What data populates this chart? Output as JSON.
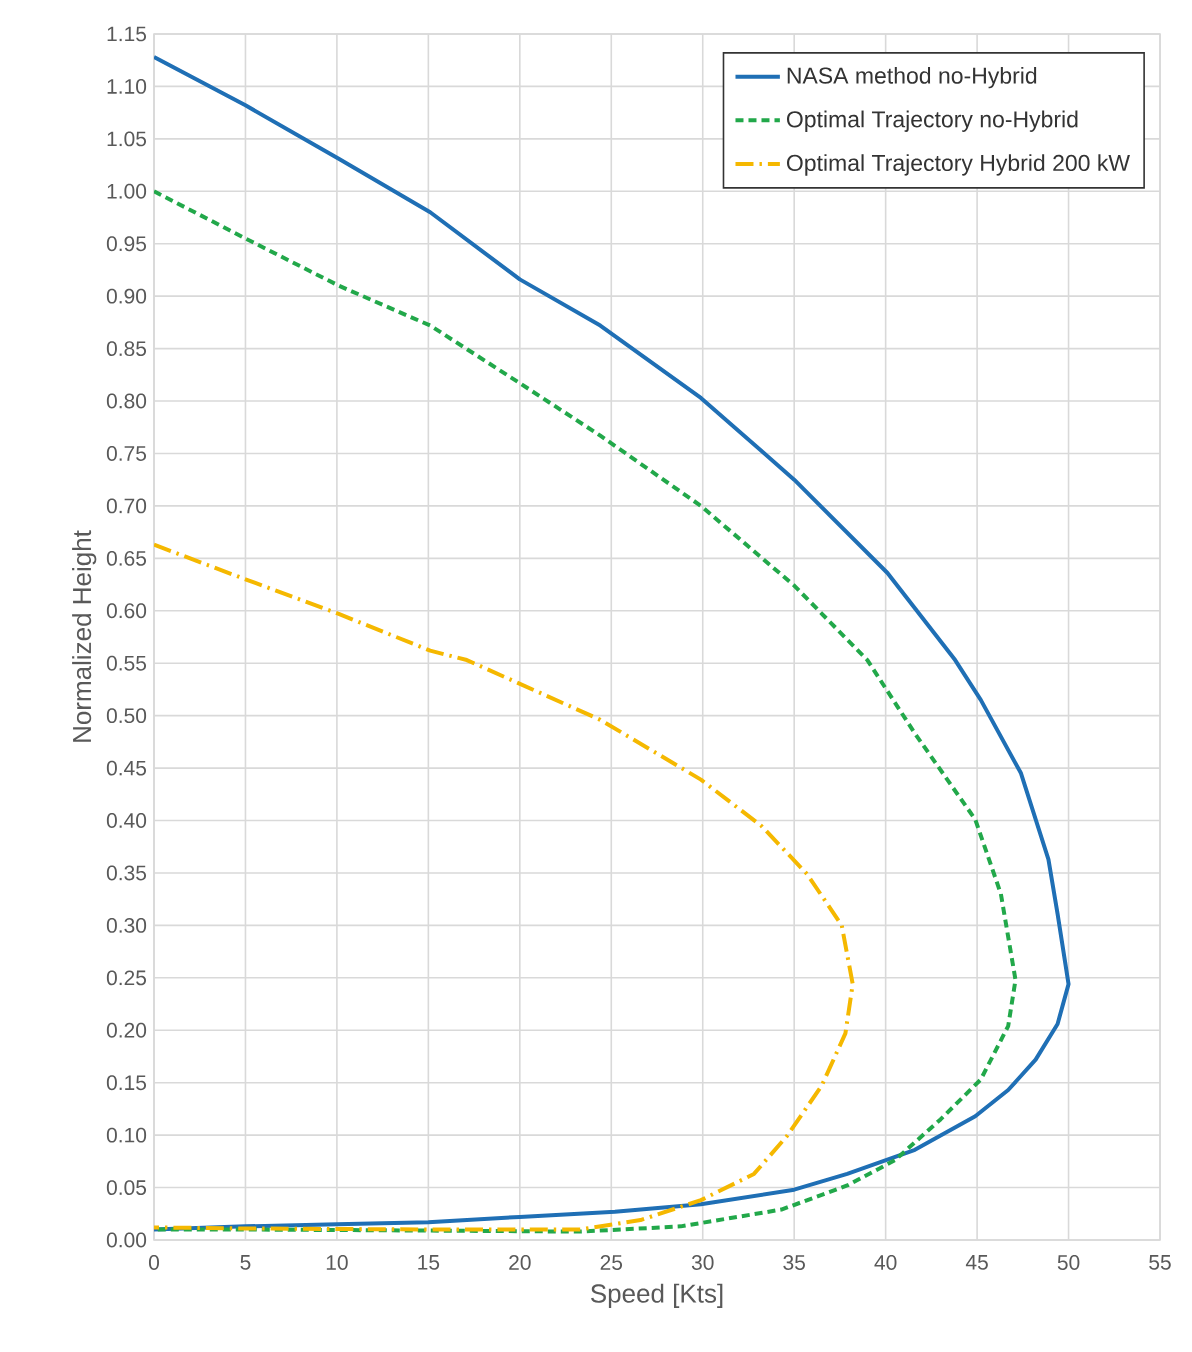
{
  "chart_data": {
    "type": "line",
    "xlabel": "Speed [Kts]",
    "ylabel": "Normalized Height",
    "xlim": [
      0,
      55
    ],
    "xticks": [
      0,
      5,
      10,
      15,
      20,
      25,
      30,
      35,
      40,
      45,
      50,
      55
    ],
    "ylim": [
      0,
      1.15
    ],
    "yticks": [
      {
        "value": 0,
        "label": "0.00"
      },
      {
        "value": 0.05,
        "label": "0.05"
      },
      {
        "value": 0.1,
        "label": "0.10"
      },
      {
        "value": 0.15,
        "label": "0.15"
      },
      {
        "value": 0.2,
        "label": "0.20"
      },
      {
        "value": 0.25,
        "label": "0.25"
      },
      {
        "value": 0.3,
        "label": "0.30"
      },
      {
        "value": 0.35,
        "label": "0.35"
      },
      {
        "value": 0.4,
        "label": "0.40"
      },
      {
        "value": 0.45,
        "label": "0.45"
      },
      {
        "value": 0.5,
        "label": "0.50"
      },
      {
        "value": 0.55,
        "label": "0.55"
      },
      {
        "value": 0.6,
        "label": "0.60"
      },
      {
        "value": 0.65,
        "label": "0.65"
      },
      {
        "value": 0.7,
        "label": "0.70"
      },
      {
        "value": 0.75,
        "label": "0.75"
      },
      {
        "value": 0.8,
        "label": "0.80"
      },
      {
        "value": 0.85,
        "label": "0.85"
      },
      {
        "value": 0.9,
        "label": "0.90"
      },
      {
        "value": 0.95,
        "label": "0.95"
      },
      {
        "value": 1.0,
        "label": "1.00"
      },
      {
        "value": 1.05,
        "label": "1.05"
      },
      {
        "value": 1.1,
        "label": "1.10"
      },
      {
        "value": 1.15,
        "label": "1.15"
      }
    ],
    "grid": true,
    "legend": "top right",
    "marker": "none",
    "series": [
      {
        "name": "NASA method no-Hybrid",
        "color": "#1f6fb5",
        "line_style": "solid",
        "x": [
          0,
          5.0,
          10.1,
          15.1,
          20.0,
          24.4,
          29.9,
          35.0,
          40.1,
          43.8,
          45.2,
          47.4,
          48.9,
          49.4,
          50.0,
          49.4,
          48.2,
          46.7,
          44.9,
          41.6,
          37.9,
          35.0,
          29.9,
          25.2,
          20,
          15,
          10,
          5,
          0
        ],
        "values": [
          1.128,
          1.082,
          1.031,
          0.98,
          0.916,
          0.872,
          0.803,
          0.725,
          0.636,
          0.553,
          0.515,
          0.445,
          0.363,
          0.311,
          0.244,
          0.206,
          0.172,
          0.143,
          0.118,
          0.086,
          0.063,
          0.048,
          0.034,
          0.027,
          0.022,
          0.017,
          0.015,
          0.013,
          0.01
        ]
      },
      {
        "name": "Optimal Trajectory no-Hybrid",
        "color": "#22a84a",
        "line_style": "dashed",
        "x": [
          0,
          5.0,
          10.1,
          15.1,
          20.0,
          24.4,
          29.9,
          35.0,
          39.0,
          41.6,
          44.9,
          46.3,
          47.1,
          46.7,
          45.2,
          43.0,
          40.5,
          37.9,
          34.3,
          28.8,
          23.3,
          15,
          5,
          0
        ],
        "values": [
          1.0,
          0.955,
          0.91,
          0.872,
          0.817,
          0.767,
          0.7,
          0.624,
          0.553,
          0.483,
          0.401,
          0.33,
          0.248,
          0.204,
          0.153,
          0.115,
          0.076,
          0.052,
          0.029,
          0.013,
          0.008,
          0.009,
          0.01,
          0.01
        ]
      },
      {
        "name": "Optimal Trajectory Hybrid 200 kW",
        "color": "#f5b800",
        "line_style": "dashdotted",
        "x": [
          0,
          5.0,
          10.1,
          15.1,
          17.1,
          24.4,
          29.9,
          33.2,
          35.7,
          37.6,
          38.2,
          37.8,
          36.5,
          34.6,
          32.8,
          29.9,
          26.6,
          23.3,
          15,
          5,
          0
        ],
        "values": [
          0.663,
          0.63,
          0.597,
          0.562,
          0.553,
          0.496,
          0.439,
          0.395,
          0.349,
          0.3,
          0.244,
          0.197,
          0.147,
          0.099,
          0.063,
          0.038,
          0.019,
          0.01,
          0.01,
          0.011,
          0.012
        ]
      }
    ]
  }
}
